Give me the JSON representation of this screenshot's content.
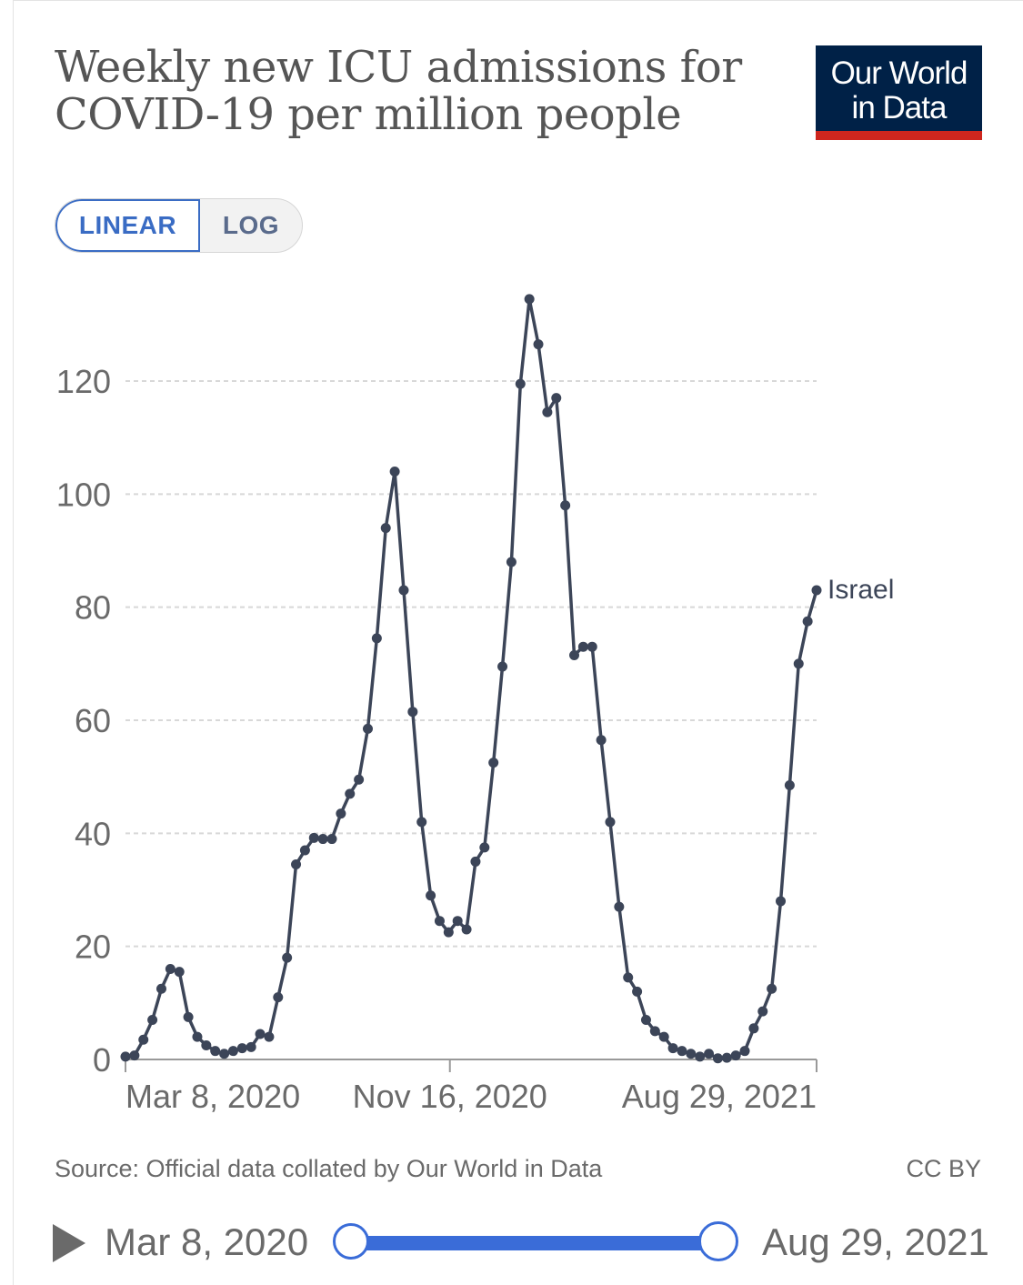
{
  "title": "Weekly new ICU admissions for COVID-19 per million people",
  "logo": {
    "line1": "Our World",
    "line2": "in Data",
    "bg_color": "#002147",
    "accent_color": "#ce261e"
  },
  "scale_toggle": {
    "linear": "LINEAR",
    "log": "LOG",
    "selected": "LINEAR"
  },
  "source": "Source: Official data collated by Our World in Data",
  "license": "CC BY",
  "timeline": {
    "start": "Mar 8, 2020",
    "end": "Aug 29, 2021",
    "accent_color": "#3a6cd8"
  },
  "chart_data": {
    "type": "line",
    "title": "Weekly new ICU admissions for COVID-19 per million people",
    "xlabel": "",
    "ylabel": "",
    "x_ticks": [
      "Mar 8, 2020",
      "Nov 16, 2020",
      "Aug 29, 2021"
    ],
    "y_ticks": [
      0,
      20,
      40,
      60,
      80,
      100,
      120
    ],
    "ylim": [
      0,
      134
    ],
    "grid": "horizontal dashed",
    "line_color": "#3c4558",
    "series": [
      {
        "name": "Israel",
        "x": [
          "2020-03-08",
          "2020-03-15",
          "2020-03-22",
          "2020-03-29",
          "2020-04-05",
          "2020-04-12",
          "2020-04-19",
          "2020-04-26",
          "2020-05-03",
          "2020-05-10",
          "2020-05-17",
          "2020-05-24",
          "2020-05-31",
          "2020-06-07",
          "2020-06-14",
          "2020-06-21",
          "2020-06-28",
          "2020-07-05",
          "2020-07-12",
          "2020-07-19",
          "2020-07-26",
          "2020-08-02",
          "2020-08-09",
          "2020-08-16",
          "2020-08-23",
          "2020-08-30",
          "2020-09-06",
          "2020-09-13",
          "2020-09-20",
          "2020-09-27",
          "2020-10-04",
          "2020-10-11",
          "2020-10-18",
          "2020-10-25",
          "2020-11-01",
          "2020-11-08",
          "2020-11-15",
          "2020-11-22",
          "2020-11-29",
          "2020-12-06",
          "2020-12-13",
          "2020-12-20",
          "2020-12-27",
          "2021-01-03",
          "2021-01-10",
          "2021-01-17",
          "2021-01-24",
          "2021-01-31",
          "2021-02-07",
          "2021-02-14",
          "2021-02-21",
          "2021-02-28",
          "2021-03-07",
          "2021-03-14",
          "2021-03-21",
          "2021-03-28",
          "2021-04-04",
          "2021-04-11",
          "2021-04-18",
          "2021-04-25",
          "2021-05-02",
          "2021-05-09",
          "2021-05-16",
          "2021-05-23",
          "2021-05-30",
          "2021-06-06",
          "2021-06-13",
          "2021-06-20",
          "2021-06-27",
          "2021-07-04",
          "2021-07-11",
          "2021-07-18",
          "2021-07-25",
          "2021-08-01",
          "2021-08-08",
          "2021-08-15",
          "2021-08-22",
          "2021-08-29"
        ],
        "values": [
          0.5,
          0.7,
          3.5,
          7.0,
          12.5,
          16.0,
          15.5,
          7.5,
          4.0,
          2.5,
          1.5,
          1.0,
          1.5,
          2.0,
          2.2,
          4.5,
          4.0,
          11.0,
          18.0,
          34.5,
          37.0,
          39.2,
          39.0,
          39.0,
          43.5,
          47.0,
          49.5,
          58.5,
          74.5,
          94.0,
          104.0,
          83.0,
          61.5,
          42.0,
          29.0,
          24.5,
          22.5,
          24.5,
          23.0,
          35.0,
          37.5,
          52.5,
          69.5,
          88.0,
          119.5,
          134.5,
          126.5,
          114.5,
          117.0,
          98.0,
          71.5,
          73.0,
          73.0,
          56.5,
          42.0,
          27.0,
          14.5,
          12.0,
          7.0,
          5.0,
          4.0,
          2.0,
          1.5,
          1.0,
          0.5,
          1.0,
          0.2,
          0.3,
          0.7,
          1.5,
          5.5,
          8.5,
          12.5,
          28.0,
          48.5,
          70.0,
          77.5,
          83.0
        ]
      }
    ]
  }
}
